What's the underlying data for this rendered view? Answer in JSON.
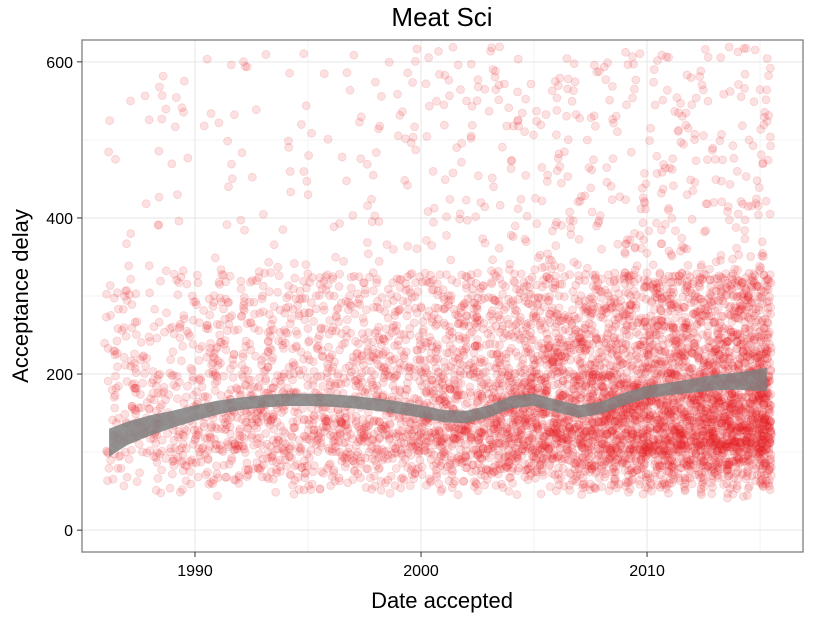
{
  "chart_data": {
    "type": "scatter",
    "title": "Meat Sci",
    "xlabel": "Date accepted",
    "ylabel": "Acceptance delay",
    "x_ticks": [
      1990,
      2000,
      2010
    ],
    "y_ticks": [
      0,
      200,
      400,
      600
    ],
    "xlim": [
      1985.0,
      2016.9
    ],
    "ylim": [
      -28,
      628
    ],
    "grid": true,
    "legend": "none",
    "point_color": "#e41a1c",
    "smooth_color": "#7f7f7f",
    "series": [
      {
        "role": "points",
        "density": [
          {
            "year": 1986,
            "count": 60
          },
          {
            "year": 1987,
            "count": 70
          },
          {
            "year": 1988,
            "count": 80
          },
          {
            "year": 1989,
            "count": 90
          },
          {
            "year": 1990,
            "count": 100
          },
          {
            "year": 1991,
            "count": 110
          },
          {
            "year": 1992,
            "count": 120
          },
          {
            "year": 1993,
            "count": 120
          },
          {
            "year": 1994,
            "count": 120
          },
          {
            "year": 1995,
            "count": 125
          },
          {
            "year": 1996,
            "count": 130
          },
          {
            "year": 1997,
            "count": 140
          },
          {
            "year": 1998,
            "count": 150
          },
          {
            "year": 1999,
            "count": 160
          },
          {
            "year": 2000,
            "count": 180
          },
          {
            "year": 2001,
            "count": 200
          },
          {
            "year": 2002,
            "count": 210
          },
          {
            "year": 2003,
            "count": 230
          },
          {
            "year": 2004,
            "count": 250
          },
          {
            "year": 2005,
            "count": 260
          },
          {
            "year": 2006,
            "count": 280
          },
          {
            "year": 2007,
            "count": 300
          },
          {
            "year": 2008,
            "count": 320
          },
          {
            "year": 2009,
            "count": 340
          },
          {
            "year": 2010,
            "count": 360
          },
          {
            "year": 2011,
            "count": 380
          },
          {
            "year": 2012,
            "count": 380
          },
          {
            "year": 2013,
            "count": 400
          },
          {
            "year": 2014,
            "count": 420
          },
          {
            "year": 2015,
            "count": 300
          }
        ]
      },
      {
        "role": "smooth",
        "x": [
          1986.2,
          1987,
          1988,
          1989,
          1990,
          1991,
          1992,
          1993,
          1994,
          1995,
          1996,
          1997,
          1998,
          1999,
          2000,
          2001,
          2002,
          2003,
          2004,
          2005,
          2006,
          2007,
          2008,
          2009,
          2010,
          2011,
          2012,
          2013,
          2014,
          2015.3
        ],
        "y": [
          112,
          124,
          134,
          142,
          150,
          157,
          162,
          165,
          167,
          167,
          166,
          164,
          161,
          157,
          152,
          146,
          145,
          152,
          164,
          167,
          159,
          152,
          157,
          168,
          177,
          181,
          185,
          189,
          191,
          193
        ],
        "band": [
          18,
          15,
          13,
          11,
          10,
          9,
          8,
          8,
          8,
          8,
          8,
          8,
          8,
          8,
          8,
          8,
          8,
          8,
          8,
          8,
          8,
          8,
          8,
          8,
          8,
          8,
          9,
          10,
          11,
          15
        ]
      }
    ]
  }
}
